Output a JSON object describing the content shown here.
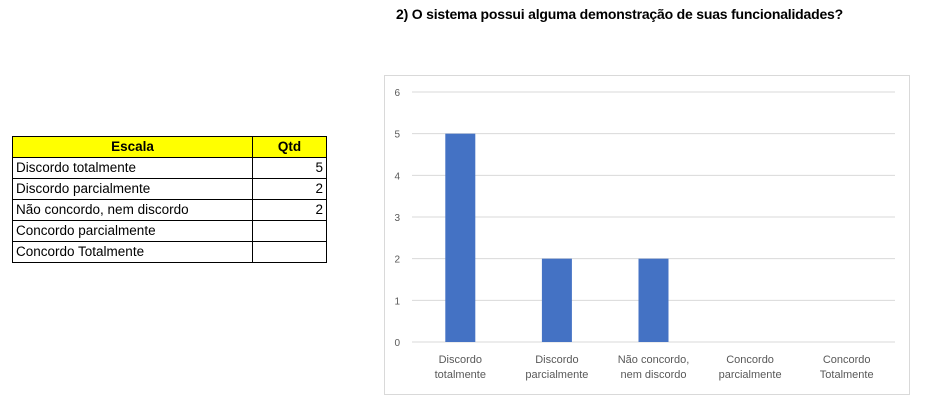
{
  "question": "2) O sistema possui alguma demonstração de suas funcionalidades?",
  "table": {
    "headers": [
      "Escala",
      "Qtd"
    ],
    "rows": [
      {
        "label": "Discordo totalmente",
        "qtd": "5"
      },
      {
        "label": "Discordo parcialmente",
        "qtd": "2"
      },
      {
        "label": "Não concordo, nem discordo",
        "qtd": "2"
      },
      {
        "label": "Concordo parcialmente",
        "qtd": ""
      },
      {
        "label": "Concordo Totalmente",
        "qtd": ""
      }
    ]
  },
  "colors": {
    "bar": "#4472c4",
    "header_fill": "#ffff00",
    "gridline": "#d9d9d9",
    "axis_text": "#595959"
  },
  "chart_data": {
    "type": "bar",
    "categories": [
      [
        "Discordo",
        "totalmente"
      ],
      [
        "Discordo",
        "parcialmente"
      ],
      [
        "Não concordo,",
        "nem discordo"
      ],
      [
        "Concordo",
        "parcialmente"
      ],
      [
        "Concordo",
        "Totalmente"
      ]
    ],
    "values": [
      5,
      2,
      2,
      0,
      0
    ],
    "ylim": [
      0,
      6
    ],
    "yticks": [
      0,
      1,
      2,
      3,
      4,
      5,
      6
    ],
    "grid": true,
    "legend": "none"
  }
}
